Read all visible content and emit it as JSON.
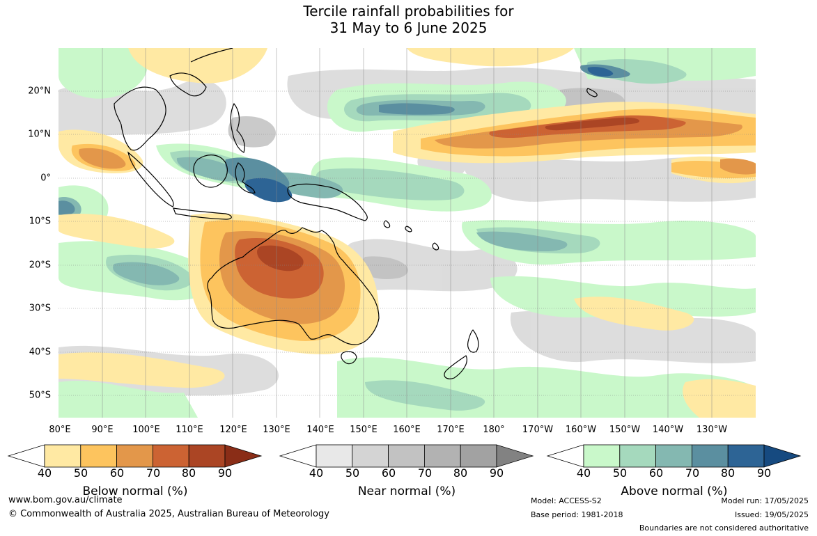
{
  "title_line1": "Tercile rainfall probabilities for",
  "title_line2": "31 May to 6 June 2025",
  "map": {
    "latitude_labels": [
      "20°N",
      "10°N",
      "0°",
      "10°S",
      "20°S",
      "30°S",
      "40°S",
      "50°S"
    ],
    "longitude_labels": [
      "80°E",
      "90°E",
      "100°E",
      "110°E",
      "120°E",
      "130°E",
      "140°E",
      "150°E",
      "160°E",
      "170°E",
      "180°",
      "170°W",
      "160°W",
      "150°W",
      "140°W",
      "130°W"
    ]
  },
  "legends": [
    {
      "title": "Below normal (%)",
      "ticks": [
        "40",
        "50",
        "60",
        "70",
        "80",
        "90"
      ],
      "colors": [
        "#ffffff",
        "#ffe9a3",
        "#fdc45e",
        "#e3974a",
        "#cc6333",
        "#ab4524",
        "#8a2d17"
      ]
    },
    {
      "title": "Near normal (%)",
      "ticks": [
        "40",
        "50",
        "60",
        "70",
        "80",
        "90"
      ],
      "colors": [
        "#ffffff",
        "#e8e8e8",
        "#d4d4d4",
        "#c2c2c2",
        "#b2b2b2",
        "#a2a2a2",
        "#828282"
      ]
    },
    {
      "title": "Above normal (%)",
      "ticks": [
        "40",
        "50",
        "60",
        "70",
        "80",
        "90"
      ],
      "colors": [
        "#ffffff",
        "#c9f8ca",
        "#a5d9bd",
        "#84b8b1",
        "#5b8fa0",
        "#2d6495",
        "#164a80"
      ]
    }
  ],
  "footer": {
    "website": "www.bom.gov.au/climate",
    "copyright": "© Commonwealth of Australia 2025, Australian Bureau of Meteorology",
    "model": "Model: ACCESS-S2",
    "base_period": "Base period: 1981-2018",
    "model_run": "Model run: 17/05/2025",
    "issued": "Issued: 19/05/2025",
    "disclaimer": "Boundaries are not considered authoritative"
  }
}
